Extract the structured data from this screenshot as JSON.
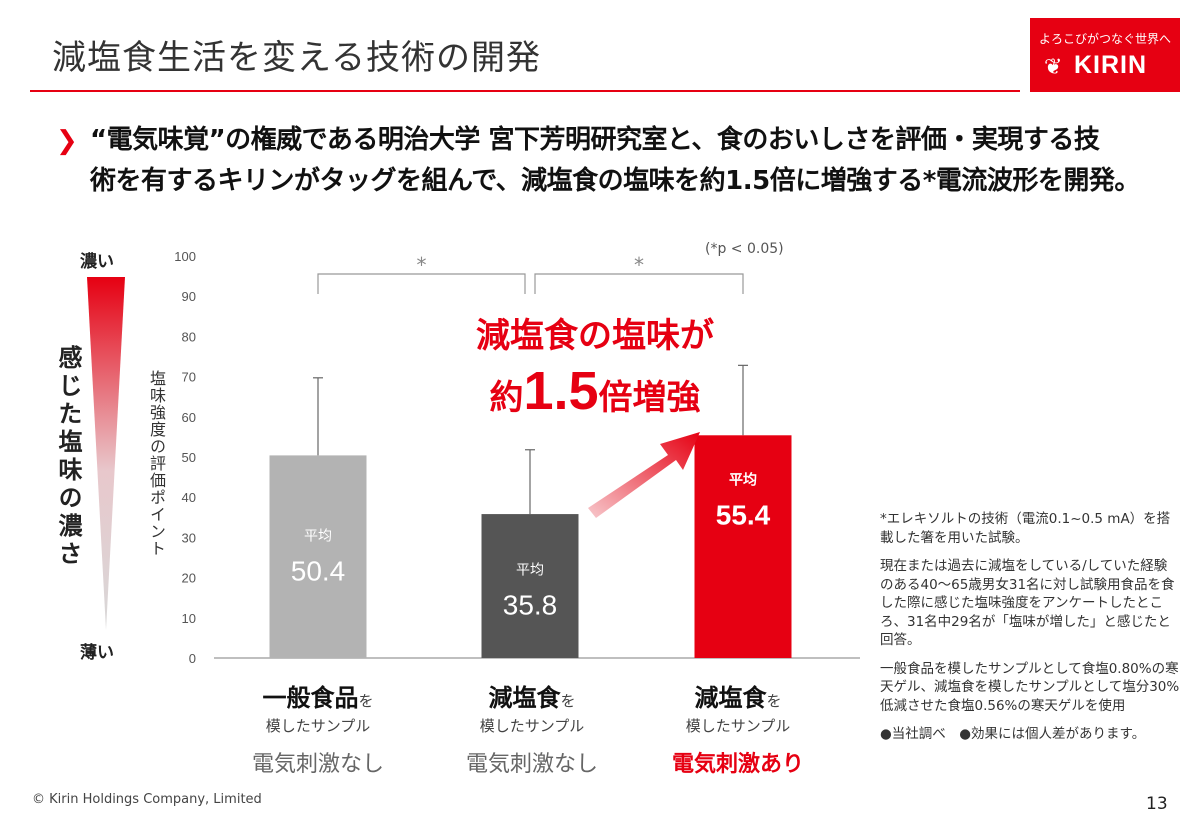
{
  "header": {
    "title": "減塩食生活を変える技術の開発",
    "logo_tagline": "よろこびがつなぐ世界へ",
    "logo_name": "KIRIN"
  },
  "headline": {
    "line1": "“電気味覚”の権威である明治大学 宮下芳明研究室と、食のおいしさを評価・実現する技",
    "line2": "術を有するキリンがタッグを組んで、減塩食の塩味を約1.5倍に増強する*電流波形を開発。"
  },
  "scale": {
    "top": "濃い",
    "bottom": "薄い",
    "label": "感じた塩味の濃さ"
  },
  "callout": {
    "line1": "減塩食の塩味が",
    "prefix": "約",
    "big": "1.5",
    "suffix": "倍増強"
  },
  "chart_data": {
    "type": "bar",
    "ylabel": "塩味強度の評価ポイント",
    "ylim": [
      0,
      100
    ],
    "yticks": [
      0,
      10,
      20,
      30,
      40,
      50,
      60,
      70,
      80,
      90,
      100
    ],
    "categories": [
      "一般食品",
      "減塩食",
      "減塩食"
    ],
    "values": [
      50.4,
      35.8,
      55.4
    ],
    "error_upper": [
      69.7,
      51.8,
      72.8
    ],
    "value_prefix": "平均",
    "value_labels": [
      "50.4",
      "35.8",
      "55.4"
    ],
    "colors": [
      "#b3b3b3",
      "#555555",
      "#e60012"
    ],
    "significance": [
      {
        "from": 0,
        "to": 1,
        "mark": "*"
      },
      {
        "from": 1,
        "to": 2,
        "mark": "*"
      }
    ],
    "p_note": "(*p < 0.05)"
  },
  "categories": [
    {
      "name": "一般食品",
      "particle": "を",
      "sub": "模したサンプル",
      "stim": "電気刺激なし"
    },
    {
      "name": "減塩食",
      "particle": "を",
      "sub": "模したサンプル",
      "stim": "電気刺激なし"
    },
    {
      "name": "減塩食",
      "particle": "を",
      "sub": "模したサンプル",
      "stim": "電気刺激あり"
    }
  ],
  "notes": {
    "n1": "*エレキソルトの技術（電流0.1~0.5 mA）を搭載した箸を用いた試験。",
    "n2": "現在または過去に減塩をしている/していた経験のある40～65歳男女31名に対し試験用食品を食した際に感じた塩味強度をアンケートしたところ、31名中29名が「塩味が増した」と感じたと回答。",
    "n3": "一般食品を模したサンプルとして食塩0.80%の寒天ゲル、減塩食を模したサンプルとして塩分30%低減させた食塩0.56%の寒天ゲルを使用",
    "n4": "●当社調べ　●効果には個人差があります。"
  },
  "footer": {
    "copyright": "© Kirin Holdings Company, Limited",
    "page": "13"
  }
}
